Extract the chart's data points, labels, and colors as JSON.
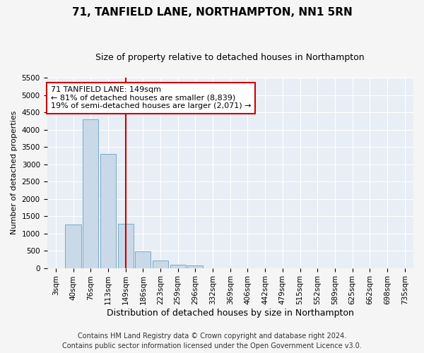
{
  "title": "71, TANFIELD LANE, NORTHAMPTON, NN1 5RN",
  "subtitle": "Size of property relative to detached houses in Northampton",
  "xlabel": "Distribution of detached houses by size in Northampton",
  "ylabel": "Number of detached properties",
  "categories": [
    "3sqm",
    "40sqm",
    "76sqm",
    "113sqm",
    "149sqm",
    "186sqm",
    "223sqm",
    "259sqm",
    "296sqm",
    "332sqm",
    "369sqm",
    "406sqm",
    "442sqm",
    "479sqm",
    "515sqm",
    "552sqm",
    "589sqm",
    "625sqm",
    "662sqm",
    "698sqm",
    "735sqm"
  ],
  "values": [
    0,
    1250,
    4300,
    3300,
    1280,
    480,
    210,
    100,
    75,
    0,
    0,
    0,
    0,
    0,
    0,
    0,
    0,
    0,
    0,
    0,
    0
  ],
  "bar_color": "#c9d9e8",
  "bar_edge_color": "#7aaac8",
  "vline_x_index": 4,
  "vline_color": "#cc0000",
  "annotation_text": "71 TANFIELD LANE: 149sqm\n← 81% of detached houses are smaller (8,839)\n19% of semi-detached houses are larger (2,071) →",
  "annotation_box_facecolor": "#ffffff",
  "annotation_box_edgecolor": "#cc0000",
  "ylim": [
    0,
    5500
  ],
  "yticks": [
    0,
    500,
    1000,
    1500,
    2000,
    2500,
    3000,
    3500,
    4000,
    4500,
    5000,
    5500
  ],
  "footer_line1": "Contains HM Land Registry data © Crown copyright and database right 2024.",
  "footer_line2": "Contains public sector information licensed under the Open Government Licence v3.0.",
  "bg_color": "#f5f5f5",
  "plot_bg_color": "#e8eef5",
  "grid_color": "#ffffff",
  "title_fontsize": 11,
  "subtitle_fontsize": 9,
  "xlabel_fontsize": 9,
  "ylabel_fontsize": 8,
  "tick_fontsize": 7.5,
  "annotation_fontsize": 8,
  "footer_fontsize": 7
}
